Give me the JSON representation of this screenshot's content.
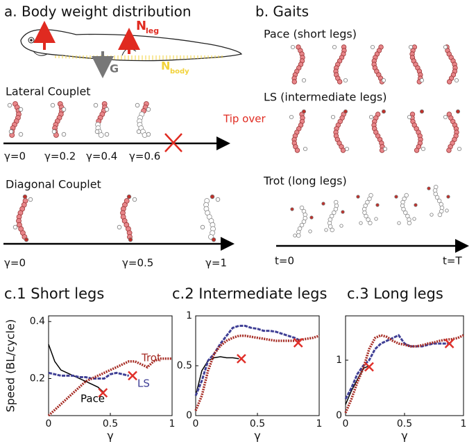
{
  "panel_a": {
    "title": "a. Body weight distribution",
    "force_labels": [
      {
        "text": "N",
        "sub": "leg"
      },
      {
        "text": "G"
      },
      {
        "text": "N",
        "sub": "body"
      }
    ],
    "lateral": {
      "title": "Lateral Couplet",
      "annotation": "Tip over",
      "labels": [
        "γ=0",
        "γ=0.2",
        "γ=0.4",
        "γ=0.6"
      ]
    },
    "diagonal": {
      "title": "Diagonal Couplet",
      "labels": [
        "γ=0",
        "γ=0.5",
        "γ=1"
      ]
    }
  },
  "panel_b": {
    "title": "b.  Gaits",
    "rows": [
      "Pace (short legs)",
      "LS (intermediate legs)",
      "Trot (long legs)"
    ],
    "labels": [
      "t=0",
      "t=T"
    ]
  },
  "chart_data": [
    {
      "type": "line",
      "title": "c.1 Short legs",
      "xlabel": "γ",
      "ylabel": "Speed (BL/cycle)",
      "x": [
        0,
        0.05,
        0.1,
        0.15,
        0.2,
        0.25,
        0.3,
        0.35,
        0.4,
        0.45,
        0.5,
        0.55,
        0.6,
        0.65,
        0.7,
        0.75,
        0.8,
        0.85,
        0.9,
        0.95,
        1
      ],
      "xlim": [
        0,
        1
      ],
      "xticks": [
        0,
        0.5,
        1
      ],
      "ylim": [
        0.07,
        0.42
      ],
      "yticks": [
        0.2,
        0.4
      ],
      "series": [
        {
          "name": "Pace",
          "color": "#000000",
          "values": [
            0.32,
            0.26,
            0.23,
            0.22,
            0.21,
            0.2,
            0.19,
            0.18,
            0.17,
            0.15,
            null,
            null,
            null,
            null,
            null,
            null,
            null,
            null,
            null,
            null,
            null
          ]
        },
        {
          "name": "LS",
          "color": "#3f3f95",
          "values": [
            0.22,
            0.215,
            0.21,
            0.21,
            0.21,
            0.205,
            0.205,
            0.2,
            0.2,
            0.2,
            0.215,
            0.22,
            0.215,
            0.21,
            null,
            null,
            null,
            null,
            null,
            null,
            null
          ]
        },
        {
          "name": "Trot",
          "color": "#a52a22",
          "values": [
            0.07,
            0.09,
            0.11,
            0.13,
            0.15,
            0.17,
            0.19,
            0.2,
            0.21,
            0.22,
            0.23,
            0.24,
            0.25,
            0.26,
            0.26,
            0.25,
            0.24,
            0.26,
            0.27,
            0.27,
            0.27
          ]
        }
      ],
      "markers": {
        "color": "#e0302a",
        "x": [
          0.44,
          0.68
        ],
        "y": [
          0.15,
          0.21
        ]
      }
    },
    {
      "type": "line",
      "title": "c.2 Intermediate legs",
      "xlabel": "γ",
      "x": [
        0,
        0.05,
        0.1,
        0.15,
        0.2,
        0.25,
        0.3,
        0.35,
        0.4,
        0.45,
        0.5,
        0.55,
        0.6,
        0.65,
        0.7,
        0.75,
        0.8,
        0.85,
        0.9,
        0.95,
        1
      ],
      "xlim": [
        0,
        1
      ],
      "xticks": [
        0,
        0.5,
        1
      ],
      "ylim": [
        0,
        1
      ],
      "yticks": [
        0,
        0.5,
        1
      ],
      "series": [
        {
          "color": "#000000",
          "values": [
            0.2,
            0.45,
            0.55,
            0.58,
            0.59,
            0.58,
            0.58,
            0.57,
            null,
            null,
            null,
            null,
            null,
            null,
            null,
            null,
            null,
            null,
            null,
            null,
            null
          ]
        },
        {
          "color": "#3f3f95",
          "values": [
            0.2,
            0.35,
            0.55,
            0.62,
            0.72,
            0.8,
            0.88,
            0.9,
            0.9,
            0.88,
            0.87,
            0.85,
            0.85,
            0.84,
            0.82,
            0.8,
            0.78,
            0.75,
            null,
            null,
            null
          ]
        },
        {
          "color": "#a52a22",
          "values": [
            0.05,
            0.2,
            0.45,
            0.62,
            0.7,
            0.75,
            0.78,
            0.8,
            0.8,
            0.79,
            0.78,
            0.77,
            0.76,
            0.75,
            0.75,
            0.75,
            0.75,
            0.76,
            0.77,
            0.78,
            0.8
          ]
        }
      ],
      "markers": {
        "color": "#e0302a",
        "x": [
          0.37,
          0.83
        ],
        "y": [
          0.57,
          0.73
        ]
      }
    },
    {
      "type": "line",
      "title": "c.3 Long legs",
      "xlabel": "γ",
      "x": [
        0,
        0.05,
        0.1,
        0.15,
        0.2,
        0.25,
        0.3,
        0.35,
        0.4,
        0.45,
        0.5,
        0.55,
        0.6,
        0.65,
        0.7,
        0.75,
        0.8,
        0.85,
        0.9,
        0.95,
        1
      ],
      "xlim": [
        0,
        1
      ],
      "xticks": [
        0,
        0.5,
        1
      ],
      "ylim": [
        0,
        1.8
      ],
      "yticks": [
        0,
        1
      ],
      "series": [
        {
          "color": "#000000",
          "values": [
            0.2,
            0.45,
            0.65,
            0.85,
            0.9,
            null,
            null,
            null,
            null,
            null,
            null,
            null,
            null,
            null,
            null,
            null,
            null,
            null,
            null,
            null,
            null
          ]
        },
        {
          "color": "#3f3f95",
          "values": [
            0.3,
            0.5,
            0.75,
            0.9,
            1.0,
            1.2,
            1.3,
            1.35,
            1.4,
            1.45,
            1.3,
            1.25,
            1.25,
            1.25,
            1.28,
            1.3,
            1.3,
            1.3,
            1.3,
            null,
            null
          ]
        },
        {
          "color": "#a52a22",
          "values": [
            0.05,
            0.3,
            0.6,
            0.85,
            1.2,
            1.4,
            1.45,
            1.42,
            1.35,
            1.3,
            1.28,
            1.25,
            1.25,
            1.27,
            1.3,
            1.32,
            1.35,
            1.37,
            1.38,
            1.4,
            1.45
          ]
        }
      ],
      "markers": {
        "color": "#e0302a",
        "x": [
          0.2,
          0.88
        ],
        "y": [
          0.88,
          1.3
        ]
      }
    }
  ]
}
